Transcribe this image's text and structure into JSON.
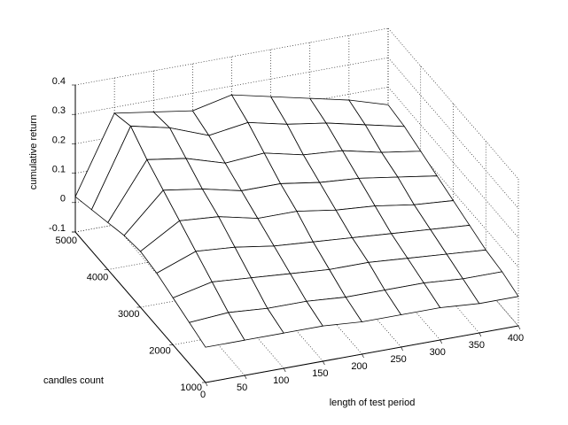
{
  "chart_data": {
    "type": "surface",
    "xlabel": "length of test period",
    "ylabel": "candles count",
    "zlabel": "cumulative return",
    "x": [
      0,
      50,
      100,
      150,
      200,
      250,
      300,
      350,
      400
    ],
    "y": [
      1000,
      1500,
      2000,
      2500,
      3000,
      3500,
      4000,
      4500,
      5000
    ],
    "z": [
      [
        0.02,
        0.02,
        0.02,
        0.02,
        0.01,
        0.01,
        0.01,
        0.0,
        0.0
      ],
      [
        0.04,
        0.05,
        0.04,
        0.04,
        0.03,
        0.03,
        0.03,
        0.02,
        0.02
      ],
      [
        0.06,
        0.09,
        0.08,
        0.07,
        0.06,
        0.06,
        0.05,
        0.04,
        0.03
      ],
      [
        0.08,
        0.13,
        0.12,
        0.1,
        0.09,
        0.08,
        0.07,
        0.06,
        0.05
      ],
      [
        0.09,
        0.17,
        0.16,
        0.13,
        0.13,
        0.11,
        0.1,
        0.08,
        0.07
      ],
      [
        0.08,
        0.21,
        0.19,
        0.16,
        0.16,
        0.14,
        0.13,
        0.11,
        0.09
      ],
      [
        0.06,
        0.25,
        0.23,
        0.19,
        0.2,
        0.17,
        0.16,
        0.13,
        0.11
      ],
      [
        0.04,
        0.3,
        0.27,
        0.22,
        0.24,
        0.21,
        0.19,
        0.16,
        0.13
      ],
      [
        0.02,
        0.28,
        0.26,
        0.24,
        0.27,
        0.24,
        0.21,
        0.18,
        0.14
      ]
    ],
    "xlim": [
      0,
      400
    ],
    "ylim": [
      1000,
      5000
    ],
    "zlim": [
      -0.1,
      0.4
    ],
    "xticks": [
      0,
      50,
      100,
      150,
      200,
      250,
      300,
      350,
      400
    ],
    "yticks": [
      1000,
      2000,
      3000,
      4000,
      5000
    ],
    "zticks": [
      -0.1,
      0,
      0.1,
      0.2,
      0.3,
      0.4
    ],
    "grid": true,
    "color": "#ffffff",
    "edgecolor": "#000000"
  }
}
